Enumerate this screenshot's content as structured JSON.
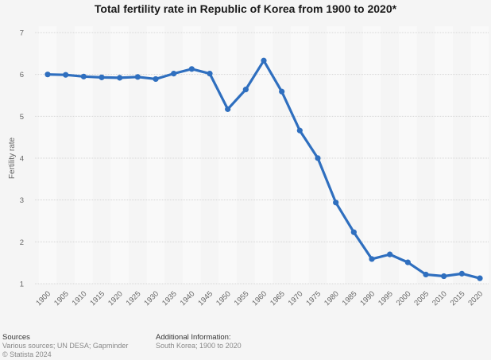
{
  "chart_data": {
    "type": "line",
    "title": "Total fertility rate in Republic of Korea from 1900 to 2020*",
    "xlabel": "",
    "ylabel": "Fertility rate",
    "ylim": [
      1,
      7
    ],
    "yticks": [
      1,
      2,
      3,
      4,
      5,
      6,
      7
    ],
    "grid": true,
    "categories": [
      "1900",
      "1905",
      "1910",
      "1915",
      "1920",
      "1925",
      "1930",
      "1935",
      "1940",
      "1945",
      "1950",
      "1955",
      "1960",
      "1965",
      "1970",
      "1975",
      "1980",
      "1985",
      "1990",
      "1995",
      "2000",
      "2005",
      "2010",
      "2015",
      "2020"
    ],
    "series": [
      {
        "name": "Fertility rate",
        "color": "#2f6fbf",
        "values": [
          6.0,
          5.99,
          5.95,
          5.93,
          5.92,
          5.94,
          5.89,
          6.02,
          6.13,
          6.02,
          5.17,
          5.64,
          6.33,
          5.59,
          4.66,
          4.0,
          2.94,
          2.23,
          1.59,
          1.7,
          1.51,
          1.22,
          1.18,
          1.24,
          1.13
        ]
      }
    ]
  },
  "footer": {
    "sources_heading": "Sources",
    "sources_text": "Various sources; UN DESA; Gapminder",
    "copyright": "© Statista 2024",
    "additional_heading": "Additional Information:",
    "additional_text": "South Korea; 1900 to 2020"
  }
}
